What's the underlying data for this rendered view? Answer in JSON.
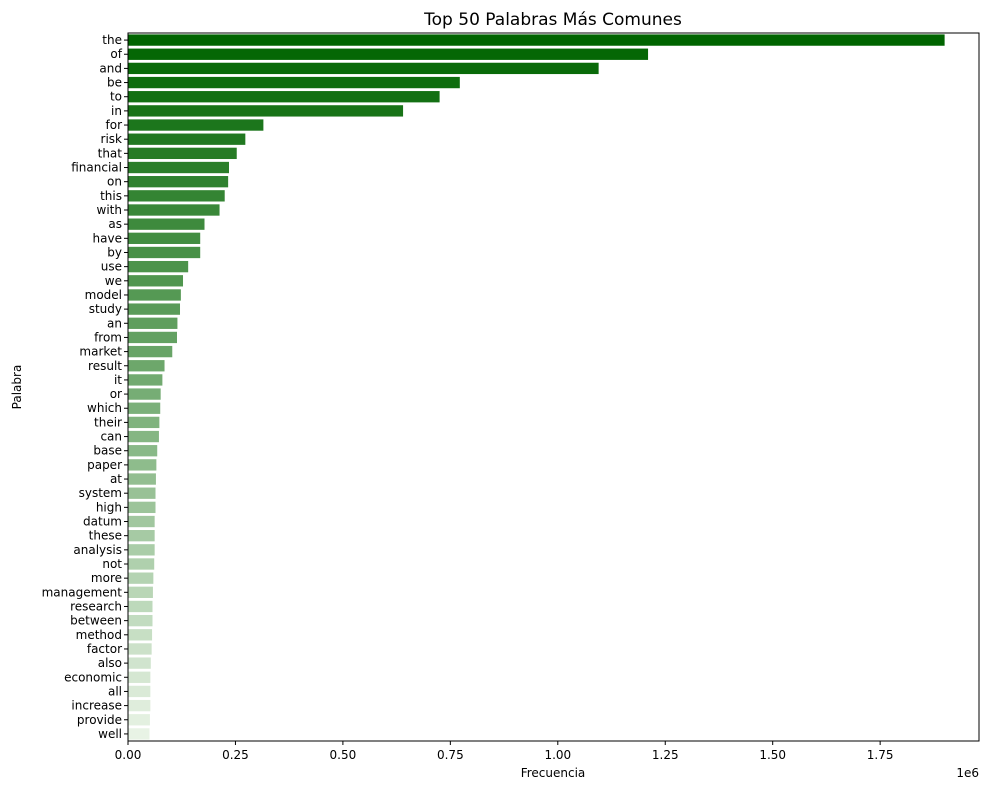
{
  "chart_data": {
    "type": "bar",
    "orientation": "horizontal",
    "title": "Top 50 Palabras Más Comunes",
    "xlabel": "Frecuencia",
    "ylabel": "Palabra",
    "x_offset_label": "1e6",
    "xlim": [
      0,
      1.98
    ],
    "xticks": [
      "0.00",
      "0.25",
      "0.50",
      "0.75",
      "1.00",
      "1.25",
      "1.50",
      "1.75"
    ],
    "xtick_values": [
      0,
      0.25,
      0.5,
      0.75,
      1.0,
      1.25,
      1.5,
      1.75
    ],
    "value_unit_multiplier": 1000000,
    "grid": false,
    "color_start": "#006400",
    "color_end": "#e8f3e5",
    "categories": [
      "the",
      "of",
      "and",
      "be",
      "to",
      "in",
      "for",
      "risk",
      "that",
      "financial",
      "on",
      "this",
      "with",
      "as",
      "have",
      "by",
      "use",
      "we",
      "model",
      "study",
      "an",
      "from",
      "market",
      "result",
      "it",
      "or",
      "which",
      "their",
      "can",
      "base",
      "paper",
      "at",
      "system",
      "high",
      "datum",
      "these",
      "analysis",
      "not",
      "more",
      "management",
      "research",
      "between",
      "method",
      "factor",
      "also",
      "economic",
      "all",
      "increase",
      "provide",
      "well"
    ],
    "values": [
      1.9,
      1.21,
      1.095,
      0.772,
      0.725,
      0.64,
      0.315,
      0.273,
      0.253,
      0.235,
      0.233,
      0.225,
      0.213,
      0.178,
      0.168,
      0.168,
      0.14,
      0.128,
      0.123,
      0.121,
      0.115,
      0.114,
      0.103,
      0.085,
      0.08,
      0.076,
      0.075,
      0.073,
      0.072,
      0.068,
      0.066,
      0.065,
      0.064,
      0.064,
      0.062,
      0.062,
      0.062,
      0.061,
      0.059,
      0.058,
      0.057,
      0.057,
      0.056,
      0.055,
      0.053,
      0.052,
      0.052,
      0.052,
      0.051,
      0.05
    ]
  }
}
